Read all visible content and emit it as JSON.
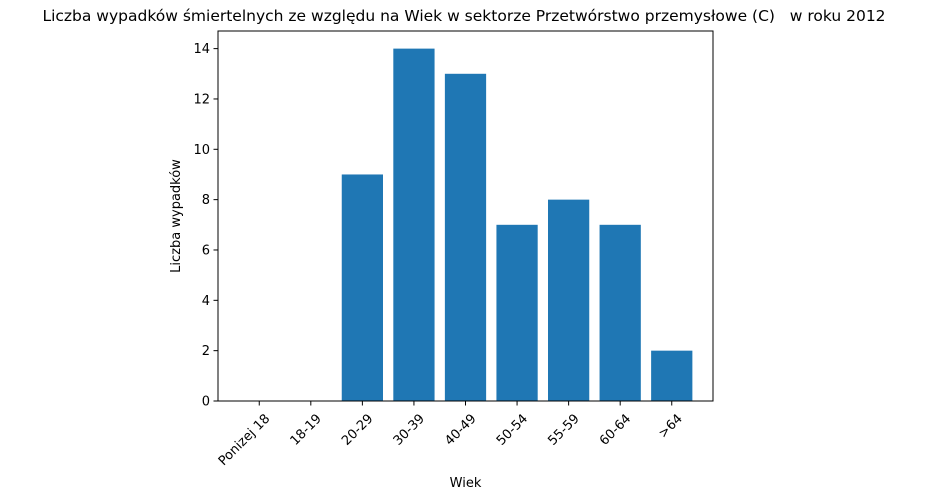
{
  "chart_data": {
    "type": "bar",
    "title": "Liczba wypadków śmiertelnych ze względu na Wiek w sektorze Przetwórstwo przemysłowe (C)   w roku 2012",
    "xlabel": "Wiek",
    "ylabel": "Liczba wypadków",
    "categories": [
      "Ponizej 18",
      "18-19",
      "20-29",
      "30-39",
      "40-49",
      "50-54",
      "55-59",
      "60-64",
      ">64"
    ],
    "values": [
      0,
      0,
      9,
      14,
      13,
      7,
      8,
      7,
      2
    ],
    "ylim": [
      0,
      14.7
    ],
    "yticks": [
      0,
      2,
      4,
      6,
      8,
      10,
      12,
      14
    ],
    "bar_color": "#1f77b4",
    "grid": false,
    "legend": "none"
  }
}
